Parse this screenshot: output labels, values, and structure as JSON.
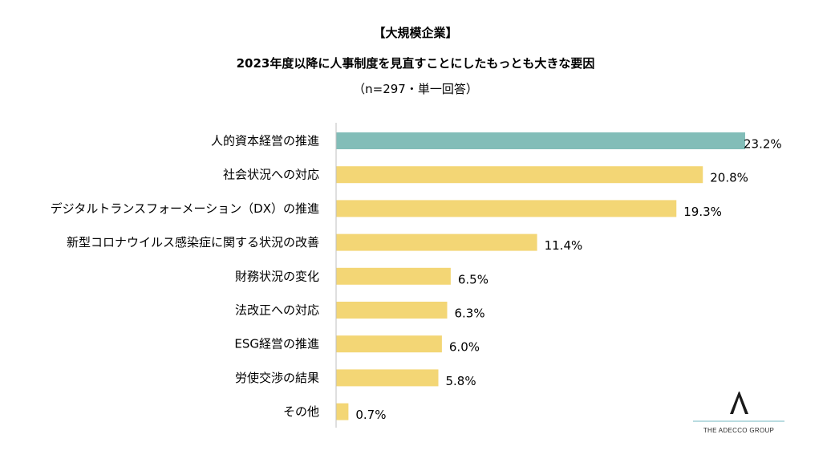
{
  "header": {
    "line1": "【大規模企業】",
    "line2": "2023年度以降に人事制度を見直すことにしたもっとも大きな要因",
    "line3": "（n=297・単一回答）"
  },
  "chart_data": {
    "type": "bar",
    "orientation": "horizontal",
    "title": "2023年度以降に人事制度を見直すことにしたもっとも大きな要因",
    "subtitle": "（n=297・単一回答）",
    "categories": [
      "人的資本経営の推進",
      "社会状況への対応",
      "デジタルトランスフォーメーション（DX）の推進",
      "新型コロナウイルス感染症に関する状況の改善",
      "財務状況の変化",
      "法改正への対応",
      "ESG経営の推進",
      "労使交渉の結果",
      "その他"
    ],
    "values": [
      23.2,
      20.8,
      19.3,
      11.4,
      6.5,
      6.3,
      6.0,
      5.8,
      0.7
    ],
    "value_labels": [
      "23.2%",
      "20.8%",
      "19.3%",
      "11.4%",
      "6.5%",
      "6.3%",
      "6.0%",
      "5.8%",
      "0.7%"
    ],
    "highlight_index": 0,
    "colors": {
      "highlight": "#82bdb8",
      "default": "#f3d675",
      "axis": "#bfbfbf"
    },
    "xlim": [
      0,
      23.2
    ],
    "grid": false,
    "legend": "none"
  },
  "brand": {
    "logo_text": "THE ADECCO GROUP",
    "logo_icon": "adecco-a-logo-icon",
    "line_color": "#8fc7cd"
  }
}
